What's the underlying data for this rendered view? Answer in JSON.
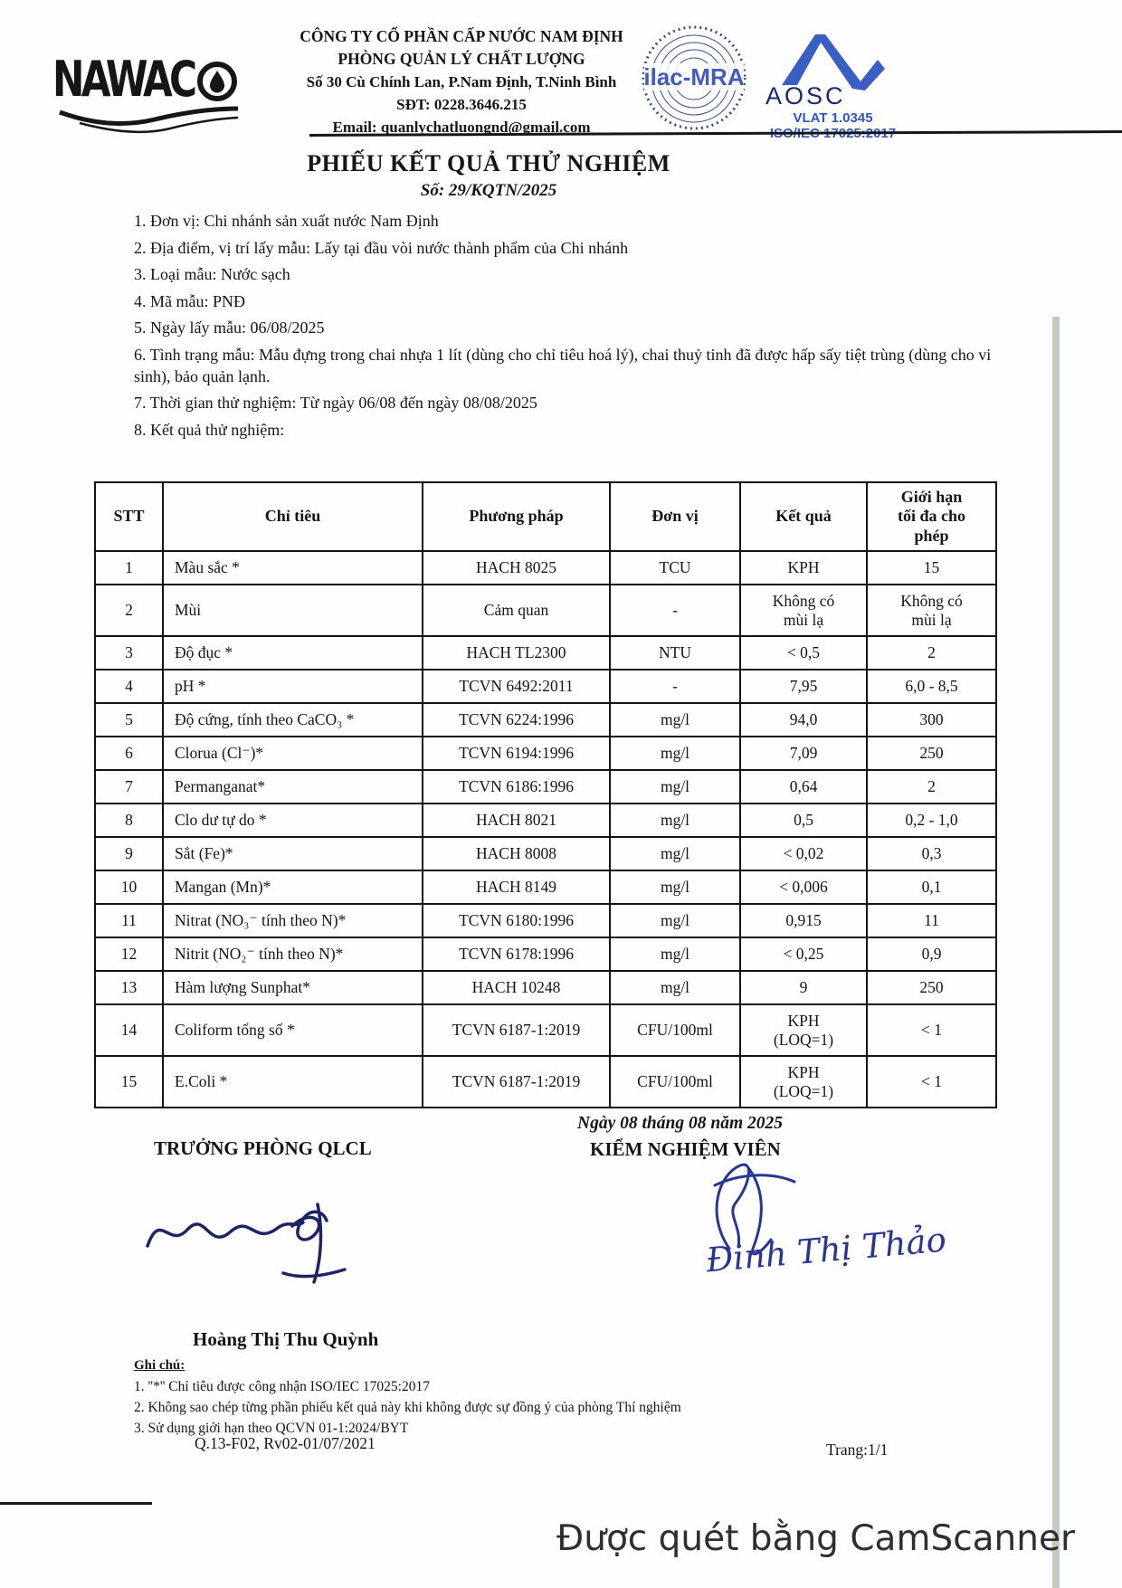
{
  "header": {
    "logo_text": "NAWAC",
    "company_lines": [
      "CÔNG TY CỔ PHẦN CẤP NƯỚC NAM ĐỊNH",
      "PHÒNG QUẢN LÝ CHẤT LƯỢNG",
      "Số 30 Cù Chính Lan, P.Nam Định, T.Ninh Bình",
      "SĐT: 0228.3646.215",
      "Email: quanlychatluongnd@gmail.com"
    ],
    "ilac_stamp_text": "ilac-MRA",
    "aosc": {
      "name": "AOSC",
      "vlat": "VLAT 1.0345",
      "iso": "ISO/IEC 17025:2017"
    }
  },
  "title": {
    "main": "PHIẾU KẾT QUẢ THỬ NGHIỆM",
    "number": "Số: 29/KQTN/2025"
  },
  "info_items": [
    "1. Đơn vị: Chi nhánh sản xuất nước Nam Định",
    "2. Địa điểm, vị trí lấy mẫu: Lấy tại đầu vòi nước thành phẩm của Chi nhánh",
    "3. Loại mẫu: Nước sạch",
    "4. Mã mẫu: PNĐ",
    "5. Ngày lấy mẫu: 06/08/2025",
    "6. Tình trạng mẫu: Mẫu đựng trong chai nhựa 1 lít (dùng cho chỉ tiêu hoá lý), chai thuỷ tinh đã được hấp sấy tiệt trùng (dùng cho vi sinh), bảo quản lạnh.",
    "7. Thời gian thử nghiệm: Từ ngày 06/08 đến ngày 08/08/2025",
    "8. Kết quả thử nghiệm:"
  ],
  "table": {
    "headers": [
      "STT",
      "Chỉ tiêu",
      "Phương pháp",
      "Đơn vị",
      "Kết quả",
      "Giới hạn\ntối đa cho\nphép"
    ],
    "rows": [
      [
        "1",
        "Màu sắc *",
        "HACH 8025",
        "TCU",
        "KPH",
        "15"
      ],
      [
        "2",
        "Mùi",
        "Cảm quan",
        "-",
        "Không có\nmùi lạ",
        "Không có\nmùi lạ"
      ],
      [
        "3",
        "Độ đục *",
        "HACH TL2300",
        "NTU",
        "< 0,5",
        "2"
      ],
      [
        "4",
        "pH *",
        "TCVN 6492:2011",
        "-",
        "7,95",
        "6,0 - 8,5"
      ],
      [
        "5",
        "Độ cứng, tính theo CaCO₃ *",
        "TCVN 6224:1996",
        "mg/l",
        "94,0",
        "300"
      ],
      [
        "6",
        "Clorua (Cl⁻)*",
        "TCVN 6194:1996",
        "mg/l",
        "7,09",
        "250"
      ],
      [
        "7",
        "Permanganat*",
        "TCVN 6186:1996",
        "mg/l",
        "0,64",
        "2"
      ],
      [
        "8",
        "Clo dư tự do *",
        "HACH 8021",
        "mg/l",
        "0,5",
        "0,2 - 1,0"
      ],
      [
        "9",
        "Sắt (Fe)*",
        "HACH 8008",
        "mg/l",
        "< 0,02",
        "0,3"
      ],
      [
        "10",
        "Mangan (Mn)*",
        "HACH 8149",
        "mg/l",
        "< 0,006",
        "0,1"
      ],
      [
        "11",
        "Nitrat (NO₃⁻ tính theo N)*",
        "TCVN 6180:1996",
        "mg/l",
        "0,915",
        "11"
      ],
      [
        "12",
        "Nitrit (NO₂⁻ tính theo N)*",
        "TCVN 6178:1996",
        "mg/l",
        "< 0,25",
        "0,9"
      ],
      [
        "13",
        "Hàm lượng Sunphat*",
        "HACH 10248",
        "mg/l",
        "9",
        "250"
      ],
      [
        "14",
        "Coliform tổng số *",
        "TCVN 6187-1:2019",
        "CFU/100ml",
        "KPH\n(LOQ=1)",
        "< 1"
      ],
      [
        "15",
        "E.Coli *",
        "TCVN 6187-1:2019",
        "CFU/100ml",
        "KPH\n(LOQ=1)",
        "< 1"
      ]
    ],
    "tall_rows": [
      1,
      13,
      14
    ]
  },
  "signatures": {
    "left_title": "TRƯỞNG PHÒNG QLCL",
    "left_name": "Hoàng Thị Thu Quỳnh",
    "date_line": "Ngày 08 tháng 08 năm 2025",
    "right_title": "KIỂM NGHIỆM VIÊN",
    "right_name_handwritten": "Đinh Thị Thảo"
  },
  "notes": {
    "label": "Ghi chú:",
    "items": [
      "1. ''*'' Chỉ tiêu được công nhận ISO/IEC 17025:2017",
      "2. Không sao chép từng phần phiếu kết quả này khi không được sự đồng ý của phòng Thí nghiệm",
      "3. Sử dụng giới hạn theo QCVN 01-1:2024/BYT"
    ],
    "doc_code": "Q.13-F02, Rv02-01/07/2021",
    "page_no": "Trang:1/1"
  },
  "scanner_note": "Được quét bằng CamScanner",
  "colors": {
    "stamp_blue": "#2f4bb5",
    "aosc_blue": "#3a5fc4",
    "aosc_dark": "#1c2a6d",
    "ink_blue": "#1d2466",
    "handwriting_blue": "#283593",
    "scan_line_green": "#b9c2ae",
    "camscanner_text": "#2f2f2f",
    "paper": "#fefefe",
    "text": "#151515"
  }
}
